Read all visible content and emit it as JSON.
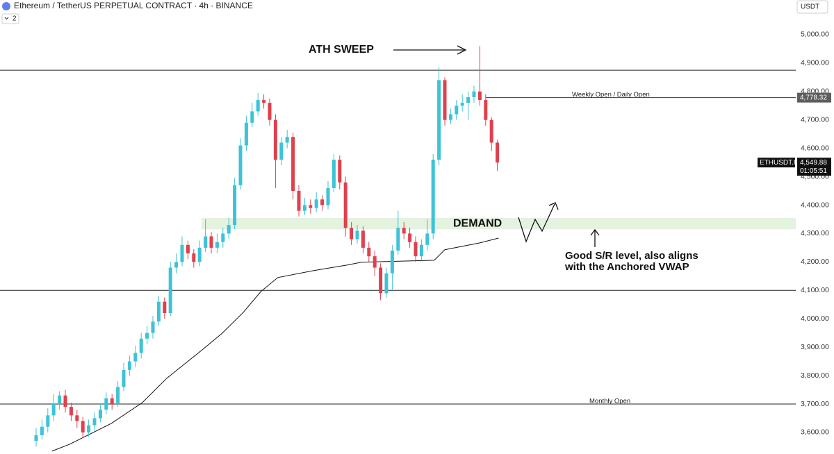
{
  "chart_data": {
    "type": "candlestick",
    "title": "Ethereum / TetherUS PERPETUAL CONTRACT · 4h · BINANCE",
    "currency": "USDT",
    "indicator_count": "2",
    "up_color": "#3cc3d6",
    "down_color": "#e0404d",
    "ylim": [
      3524,
      5122
    ],
    "yticks": [
      {
        "value": 3600,
        "label": "3,600.00"
      },
      {
        "value": 3700,
        "label": "3,700.00"
      },
      {
        "value": 3800,
        "label": "3,800.00"
      },
      {
        "value": 3900,
        "label": "3,900.00"
      },
      {
        "value": 4000,
        "label": "4,000.00"
      },
      {
        "value": 4100,
        "label": "4,100.00"
      },
      {
        "value": 4200,
        "label": "4,200.00"
      },
      {
        "value": 4300,
        "label": "4,300.00"
      },
      {
        "value": 4400,
        "label": "4,400.00"
      },
      {
        "value": 4500,
        "label": "4,500.00"
      },
      {
        "value": 4600,
        "label": "4,600.00"
      },
      {
        "value": 4700,
        "label": "4,700.00"
      },
      {
        "value": 4800,
        "label": "4,800.00"
      },
      {
        "value": 4900,
        "label": "4,900.00"
      },
      {
        "value": 5000,
        "label": "5,000.00"
      }
    ],
    "ohlc": [
      [
        3570,
        3615,
        3550,
        3590
      ],
      [
        3590,
        3645,
        3575,
        3620
      ],
      [
        3620,
        3685,
        3600,
        3660
      ],
      [
        3660,
        3735,
        3640,
        3700
      ],
      [
        3700,
        3745,
        3680,
        3730
      ],
      [
        3730,
        3750,
        3670,
        3690
      ],
      [
        3690,
        3705,
        3640,
        3660
      ],
      [
        3660,
        3680,
        3615,
        3640
      ],
      [
        3640,
        3655,
        3580,
        3600
      ],
      [
        3600,
        3645,
        3585,
        3625
      ],
      [
        3625,
        3670,
        3605,
        3650
      ],
      [
        3650,
        3700,
        3635,
        3680
      ],
      [
        3680,
        3740,
        3665,
        3720
      ],
      [
        3720,
        3735,
        3680,
        3700
      ],
      [
        3700,
        3780,
        3690,
        3760
      ],
      [
        3760,
        3845,
        3745,
        3820
      ],
      [
        3820,
        3870,
        3800,
        3850
      ],
      [
        3850,
        3905,
        3830,
        3880
      ],
      [
        3880,
        3950,
        3860,
        3930
      ],
      [
        3930,
        3975,
        3910,
        3950
      ],
      [
        3950,
        4010,
        3930,
        3990
      ],
      [
        3990,
        4080,
        3975,
        4060
      ],
      [
        4060,
        4075,
        4000,
        4020
      ],
      [
        4020,
        4200,
        4010,
        4180
      ],
      [
        4180,
        4230,
        4160,
        4200
      ],
      [
        4200,
        4290,
        4185,
        4260
      ],
      [
        4260,
        4275,
        4210,
        4230
      ],
      [
        4230,
        4245,
        4180,
        4200
      ],
      [
        4200,
        4275,
        4185,
        4250
      ],
      [
        4250,
        4350,
        4235,
        4290
      ],
      [
        4290,
        4305,
        4230,
        4250
      ],
      [
        4250,
        4300,
        4230,
        4270
      ],
      [
        4270,
        4320,
        4250,
        4300
      ],
      [
        4300,
        4355,
        4280,
        4330
      ],
      [
        4330,
        4495,
        4315,
        4470
      ],
      [
        4470,
        4635,
        4455,
        4610
      ],
      [
        4610,
        4715,
        4590,
        4690
      ],
      [
        4690,
        4760,
        4675,
        4730
      ],
      [
        4730,
        4795,
        4715,
        4770
      ],
      [
        4770,
        4790,
        4740,
        4760
      ],
      [
        4760,
        4775,
        4680,
        4700
      ],
      [
        4700,
        4720,
        4460,
        4560
      ],
      [
        4560,
        4640,
        4540,
        4620
      ],
      [
        4620,
        4665,
        4600,
        4640
      ],
      [
        4640,
        4655,
        4420,
        4450
      ],
      [
        4450,
        4470,
        4360,
        4380
      ],
      [
        4380,
        4425,
        4365,
        4400
      ],
      [
        4400,
        4420,
        4370,
        4390
      ],
      [
        4390,
        4445,
        4375,
        4420
      ],
      [
        4420,
        4435,
        4380,
        4400
      ],
      [
        4400,
        4485,
        4385,
        4460
      ],
      [
        4460,
        4580,
        4445,
        4560
      ],
      [
        4560,
        4575,
        4455,
        4480
      ],
      [
        4480,
        4500,
        4290,
        4320
      ],
      [
        4320,
        4340,
        4260,
        4280
      ],
      [
        4280,
        4330,
        4265,
        4310
      ],
      [
        4310,
        4325,
        4230,
        4250
      ],
      [
        4250,
        4270,
        4200,
        4220
      ],
      [
        4220,
        4240,
        4150,
        4180
      ],
      [
        4180,
        4195,
        4065,
        4090
      ],
      [
        4090,
        4180,
        4075,
        4160
      ],
      [
        4160,
        4260,
        4100,
        4240
      ],
      [
        4240,
        4380,
        4225,
        4320
      ],
      [
        4320,
        4340,
        4280,
        4300
      ],
      [
        4300,
        4320,
        4250,
        4270
      ],
      [
        4270,
        4290,
        4200,
        4220
      ],
      [
        4220,
        4280,
        4205,
        4260
      ],
      [
        4260,
        4350,
        4240,
        4300
      ],
      [
        4300,
        4580,
        4280,
        4560
      ],
      [
        4560,
        4885,
        4540,
        4840
      ],
      [
        4840,
        4850,
        4680,
        4700
      ],
      [
        4700,
        4740,
        4685,
        4720
      ],
      [
        4720,
        4770,
        4700,
        4750
      ],
      [
        4750,
        4790,
        4730,
        4760
      ],
      [
        4760,
        4800,
        4700,
        4780
      ],
      [
        4780,
        4820,
        4760,
        4800
      ],
      [
        4800,
        4960,
        4750,
        4770
      ],
      [
        4770,
        4790,
        4680,
        4700
      ],
      [
        4700,
        4710,
        4590,
        4620
      ],
      [
        4620,
        4630,
        4520,
        4549.88
      ]
    ],
    "vwap": {
      "x": [
        2.7,
        5.7,
        12.9,
        18.2,
        22.4,
        28.3,
        31.9,
        35.5,
        38.5,
        41.4,
        47.4,
        53.3,
        55.7,
        68.2,
        70,
        76,
        79.2
      ],
      "values": [
        3534,
        3558,
        3632,
        3705,
        3791,
        3888,
        3950,
        4023,
        4096,
        4145,
        4169,
        4189,
        4199,
        4206,
        4243,
        4267,
        4284
      ]
    },
    "levels": [
      4875,
      4100,
      3700
    ],
    "monthly_open": {
      "value": 3700,
      "label": "Monthly Open"
    },
    "weekly_open": {
      "value": 4778.32,
      "label": "Weekly Open / Daily Open",
      "price_label": "4,778.32"
    },
    "last_price": {
      "value": 4549.88,
      "label": "4,549.88",
      "symbol": "ETHUSDT.P",
      "countdown": "01:05:51"
    },
    "demand": {
      "label": "DEMAND",
      "low": 4315,
      "high": 4355
    },
    "annotations": {
      "ath": "ATH SWEEP",
      "note": [
        "Good S/R level, also aligns",
        "with the Anchored VWAP"
      ]
    }
  }
}
